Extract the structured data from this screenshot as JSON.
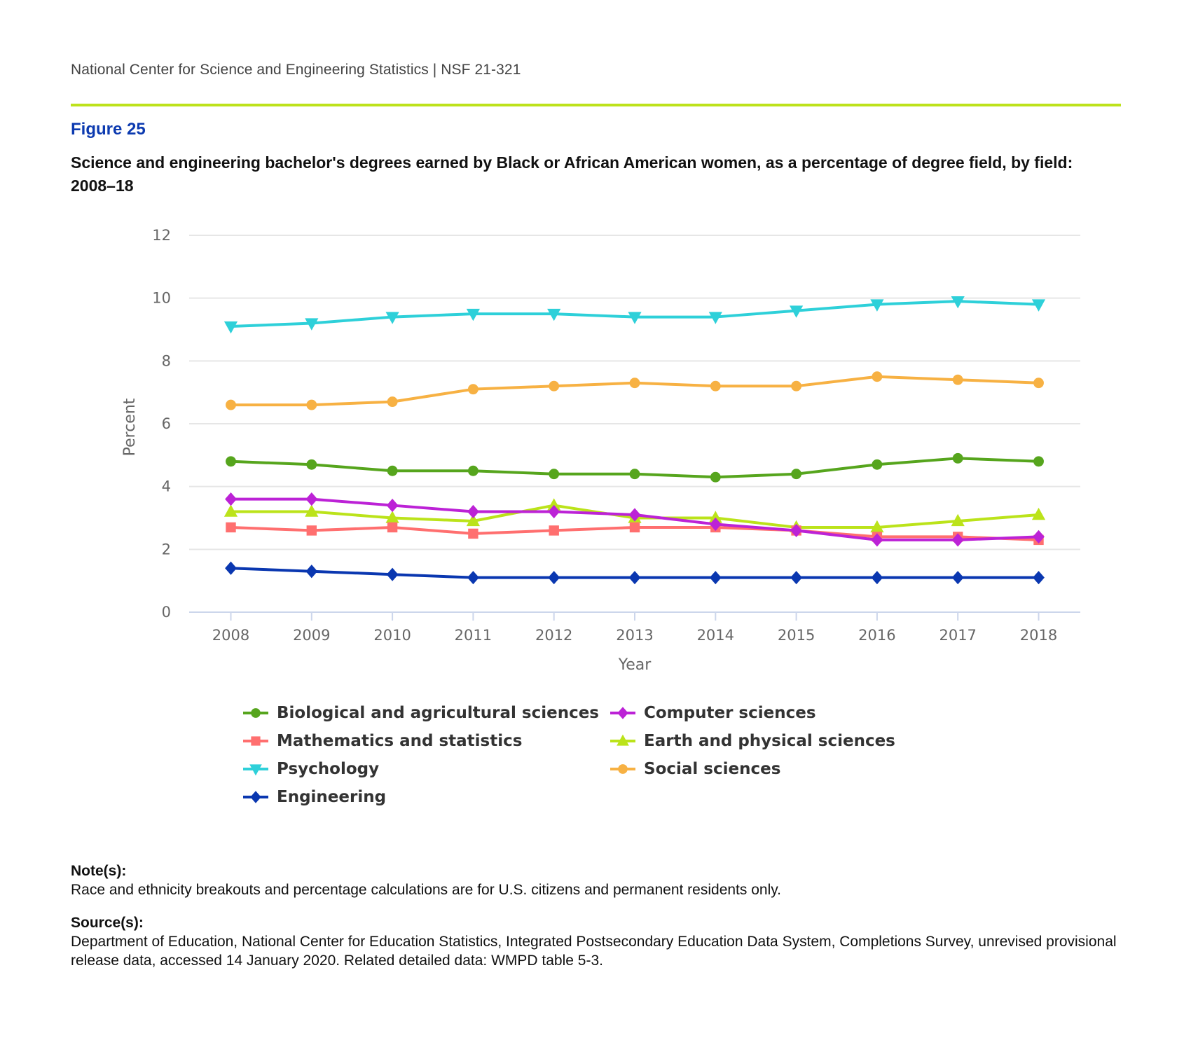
{
  "header": {
    "publisher": "National Center for Science and Engineering Statistics",
    "separator": "|",
    "report_id": "NSF 21-321",
    "text": "National Center for Science and Engineering Statistics  |  NSF 21-321",
    "rule_color": "#bde21b"
  },
  "figure": {
    "label": "Figure 25",
    "title": "Science and engineering bachelor's degrees earned by Black or African American women, as a percentage of degree field, by field: 2008–18"
  },
  "chart_data": {
    "type": "line",
    "title": "Science and engineering bachelor's degrees earned by Black or African American women, as a percentage of degree field, by field: 2008–18",
    "xlabel": "Year",
    "ylabel": "Percent",
    "x": [
      "2008",
      "2009",
      "2010",
      "2011",
      "2012",
      "2013",
      "2014",
      "2015",
      "2016",
      "2017",
      "2018"
    ],
    "ylim": [
      0,
      12
    ],
    "yticks": [
      0,
      2,
      4,
      6,
      8,
      10,
      12
    ],
    "grid": true,
    "legend_position": "bottom",
    "series": [
      {
        "name": "Biological and agricultural sciences",
        "color": "#56a51d",
        "marker": "circle",
        "values": [
          4.8,
          4.7,
          4.5,
          4.5,
          4.4,
          4.4,
          4.3,
          4.4,
          4.7,
          4.9,
          4.8
        ]
      },
      {
        "name": "Computer sciences",
        "color": "#bc22d6",
        "marker": "diamond",
        "values": [
          3.6,
          3.6,
          3.4,
          3.2,
          3.2,
          3.1,
          2.8,
          2.6,
          2.3,
          2.3,
          2.4
        ]
      },
      {
        "name": "Mathematics and statistics",
        "color": "#ff6f6f",
        "marker": "square",
        "values": [
          2.7,
          2.6,
          2.7,
          2.5,
          2.6,
          2.7,
          2.7,
          2.6,
          2.4,
          2.4,
          2.3
        ]
      },
      {
        "name": "Earth and physical sciences",
        "color": "#bbe31a",
        "marker": "triangle-up",
        "values": [
          3.2,
          3.2,
          3.0,
          2.9,
          3.4,
          3.0,
          3.0,
          2.7,
          2.7,
          2.9,
          3.1
        ]
      },
      {
        "name": "Psychology",
        "color": "#2ed0d9",
        "marker": "triangle-down",
        "values": [
          9.1,
          9.2,
          9.4,
          9.5,
          9.5,
          9.4,
          9.4,
          9.6,
          9.8,
          9.9,
          9.8
        ]
      },
      {
        "name": "Social sciences",
        "color": "#f7b143",
        "marker": "circle",
        "values": [
          6.6,
          6.6,
          6.7,
          7.1,
          7.2,
          7.3,
          7.2,
          7.2,
          7.5,
          7.4,
          7.3
        ]
      },
      {
        "name": "Engineering",
        "color": "#0a37b0",
        "marker": "diamond",
        "values": [
          1.4,
          1.3,
          1.2,
          1.1,
          1.1,
          1.1,
          1.1,
          1.1,
          1.1,
          1.1,
          1.1
        ]
      }
    ]
  },
  "legend_order": [
    [
      0,
      1
    ],
    [
      2,
      3
    ],
    [
      4,
      5
    ],
    [
      6
    ]
  ],
  "notes": {
    "note_heading": "Note(s):",
    "note_text": "Race and ethnicity breakouts and percentage calculations are for U.S. citizens and permanent residents only.",
    "source_heading": "Source(s):",
    "source_text": "Department of Education, National Center for Education Statistics, Integrated Postsecondary Education Data System, Completions Survey, unrevised provisional release data, accessed 14 January 2020. Related detailed data: WMPD table 5-3."
  }
}
